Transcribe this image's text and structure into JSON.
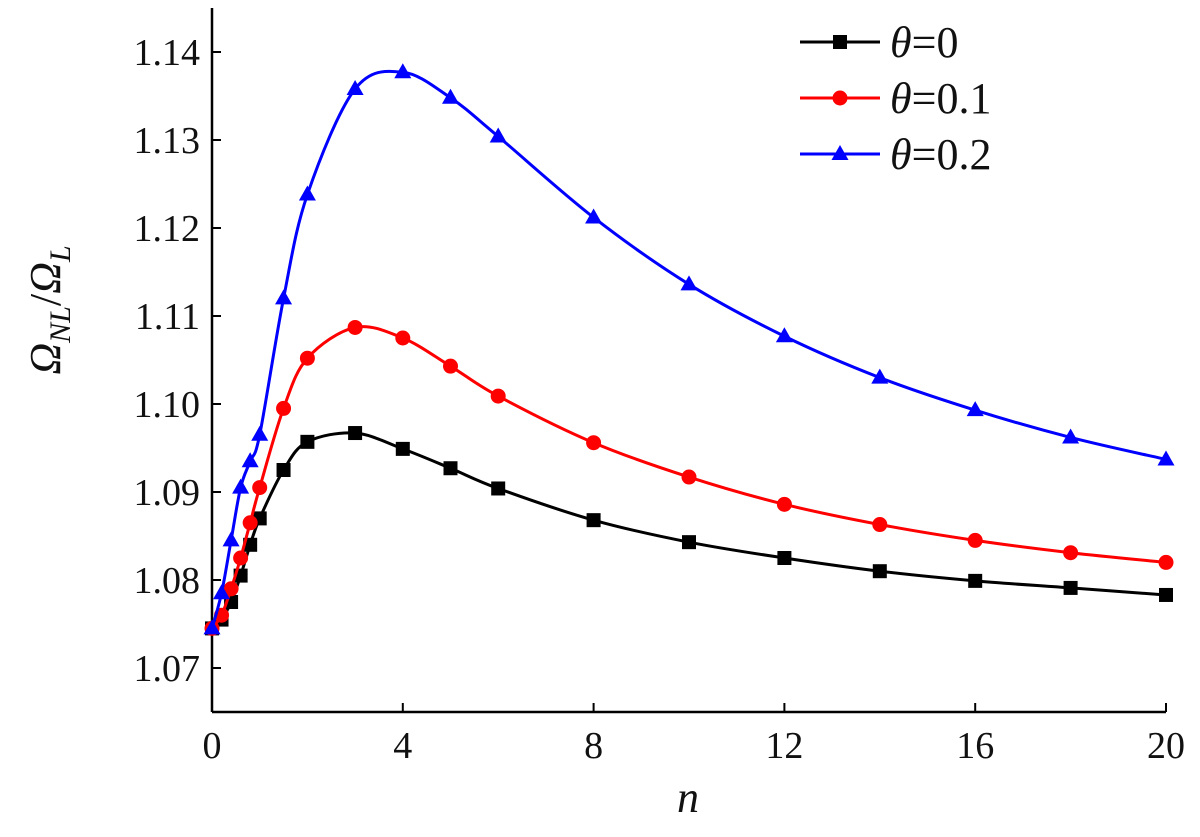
{
  "chart_data": {
    "type": "line",
    "xlabel": "n",
    "ylabel": {
      "main": "Ω",
      "sub_num": "NL",
      "slash": "/",
      "main2": "Ω",
      "sub_den": "L"
    },
    "xlim": [
      0,
      20
    ],
    "ylim": [
      1.065,
      1.145
    ],
    "x_ticks": [
      0,
      4,
      8,
      12,
      16,
      20
    ],
    "x_tick_labels": [
      "0",
      "4",
      "8",
      "12",
      "16",
      "20"
    ],
    "y_ticks": [
      1.07,
      1.08,
      1.09,
      1.1,
      1.11,
      1.12,
      1.13,
      1.14
    ],
    "y_tick_labels": [
      "1.07",
      "1.08",
      "1.09",
      "1.10",
      "1.11",
      "1.12",
      "1.13",
      "1.14"
    ],
    "grid": false,
    "legend_position": "top-right",
    "series": [
      {
        "name": "θ=0",
        "name_symbol": "θ",
        "name_value": "=0",
        "color": "#000000",
        "marker": "square",
        "x": [
          0,
          0.2,
          0.4,
          0.6,
          0.8,
          1,
          1.5,
          2,
          3,
          4,
          5,
          6,
          8,
          10,
          12,
          14,
          16,
          18,
          20
        ],
        "y": [
          1.0745,
          1.0755,
          1.0775,
          1.0805,
          1.084,
          1.087,
          1.0925,
          1.0957,
          1.0967,
          1.0949,
          1.0927,
          1.0904,
          1.0868,
          1.0843,
          1.0825,
          1.081,
          1.0799,
          1.0791,
          1.0783
        ]
      },
      {
        "name": "θ=0.1",
        "name_symbol": "θ",
        "name_value": "=0.1",
        "color": "#ff0000",
        "marker": "circle",
        "x": [
          0,
          0.2,
          0.4,
          0.6,
          0.8,
          1,
          1.5,
          2,
          3,
          4,
          5,
          6,
          8,
          10,
          12,
          14,
          16,
          18,
          20
        ],
        "y": [
          1.0745,
          1.076,
          1.079,
          1.0825,
          1.0865,
          1.0905,
          1.0995,
          1.1052,
          1.1087,
          1.1075,
          1.1043,
          1.1009,
          1.0956,
          1.0917,
          1.0886,
          1.0863,
          1.0845,
          1.0831,
          1.082
        ]
      },
      {
        "name": "θ=0.2",
        "name_symbol": "θ",
        "name_value": "=0.2",
        "color": "#0000ff",
        "marker": "triangle",
        "x": [
          0,
          0.2,
          0.4,
          0.6,
          0.8,
          1,
          1.5,
          2,
          3,
          4,
          5,
          6,
          8,
          10,
          12,
          14,
          16,
          18,
          20
        ],
        "y": [
          1.0745,
          1.0785,
          1.0845,
          1.0905,
          1.0935,
          1.0965,
          1.112,
          1.1238,
          1.1358,
          1.1377,
          1.1348,
          1.1304,
          1.1212,
          1.1136,
          1.1077,
          1.103,
          1.0993,
          1.0962,
          1.0937
        ]
      }
    ]
  }
}
